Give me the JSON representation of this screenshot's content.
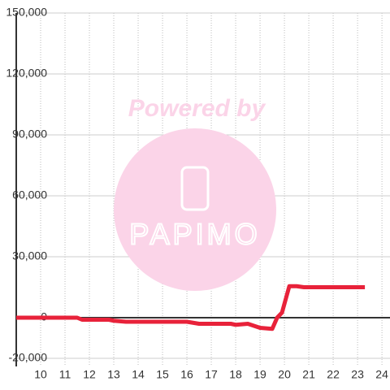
{
  "chart_data": {
    "type": "line",
    "watermark": {
      "title": "Powered by",
      "logo_text": "PAPIMO"
    },
    "x": [
      9,
      11.5,
      11.7,
      12.8,
      13,
      13.5,
      16,
      16.5,
      17.8,
      18,
      18.5,
      19,
      19.5,
      19.7,
      19.9,
      20.2,
      20.5,
      20.8,
      23.3
    ],
    "series": [
      {
        "color": "#e8223a",
        "values": [
          0,
          0,
          -1000,
          -1000,
          -1500,
          -2000,
          -2000,
          -3000,
          -3000,
          -3500,
          -3000,
          -5000,
          -5500,
          0,
          2500,
          15500,
          15500,
          15000,
          15000
        ]
      }
    ],
    "xlim": [
      9,
      24.33
    ],
    "xticks": [
      10,
      11,
      12,
      13,
      14,
      15,
      16,
      17,
      18,
      19,
      20,
      21,
      22,
      23,
      24
    ],
    "ylim": [
      -20000,
      150000
    ],
    "yticks": [
      {
        "value": -20000,
        "label": "-20,000"
      },
      {
        "value": 0,
        "label": "0"
      },
      {
        "value": 30000,
        "label": "30,000"
      },
      {
        "value": 60000,
        "label": "60,000"
      },
      {
        "value": 90000,
        "label": "90,000"
      },
      {
        "value": 120000,
        "label": "120,000"
      },
      {
        "value": 150000,
        "label": "150,000"
      }
    ],
    "grid": true
  }
}
